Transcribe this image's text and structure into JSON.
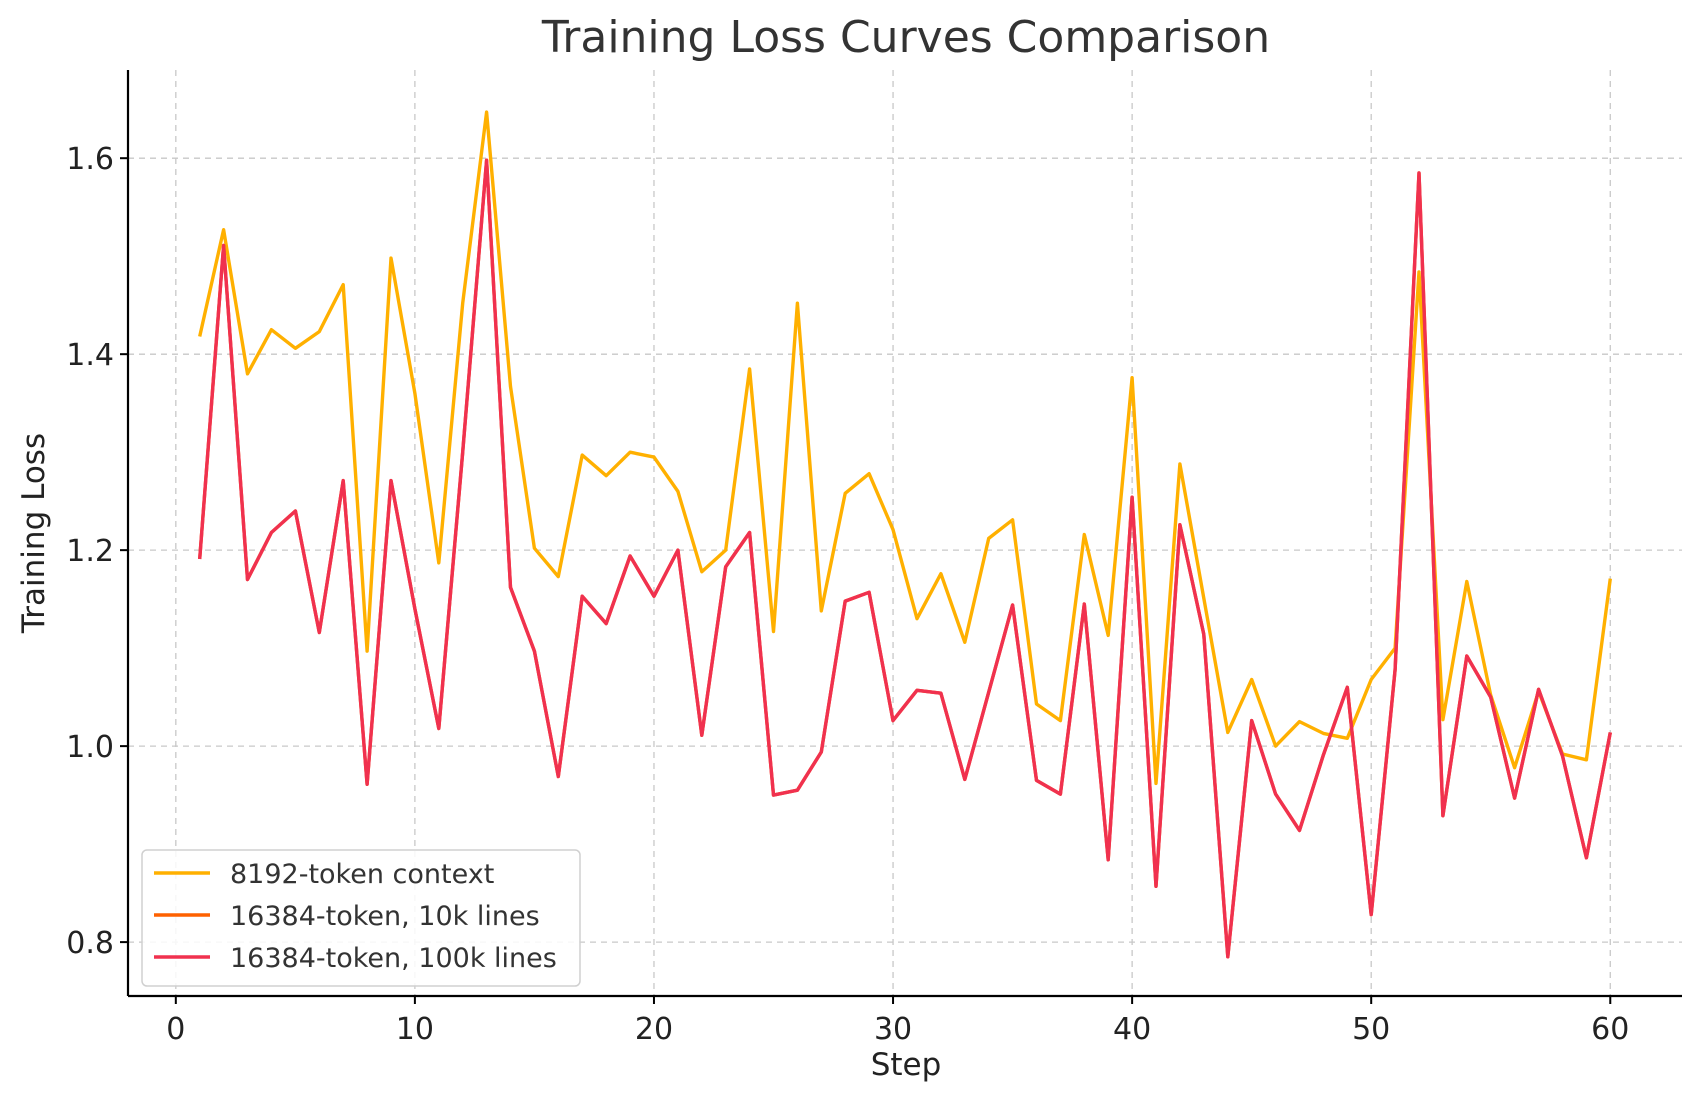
{
  "chart_data": {
    "type": "line",
    "title": "Training Loss Curves Comparison",
    "xlabel": "Step",
    "ylabel": "Training Loss",
    "xlim": [
      -2,
      63
    ],
    "ylim": [
      0.745,
      1.69
    ],
    "xticks": [
      0,
      10,
      20,
      30,
      40,
      50,
      60
    ],
    "yticks": [
      0.8,
      1.0,
      1.2,
      1.4,
      1.6
    ],
    "grid": true,
    "legend_position": "lower-left",
    "x": [
      1,
      2,
      3,
      4,
      5,
      6,
      7,
      8,
      9,
      10,
      11,
      12,
      13,
      14,
      15,
      16,
      17,
      18,
      19,
      20,
      21,
      22,
      23,
      24,
      25,
      26,
      27,
      28,
      29,
      30,
      31,
      32,
      33,
      34,
      35,
      36,
      37,
      38,
      39,
      40,
      41,
      42,
      43,
      44,
      45,
      46,
      47,
      48,
      49,
      50,
      51,
      52,
      53,
      54,
      55,
      56,
      57,
      58,
      59,
      60
    ],
    "series": [
      {
        "name": "8192-token context",
        "color": "#FFB000",
        "values": [
          1.418,
          1.527,
          1.38,
          1.425,
          1.406,
          1.423,
          1.471,
          1.097,
          1.498,
          1.36,
          1.187,
          1.452,
          1.647,
          1.367,
          1.202,
          1.173,
          1.297,
          1.276,
          1.3,
          1.295,
          1.26,
          1.178,
          1.2,
          1.385,
          1.117,
          1.452,
          1.138,
          1.258,
          1.278,
          1.221,
          1.13,
          1.176,
          1.106,
          1.212,
          1.231,
          1.043,
          1.026,
          1.216,
          1.113,
          1.376,
          0.962,
          1.288,
          1.151,
          1.014,
          1.068,
          1.0,
          1.025,
          1.013,
          1.008,
          1.068,
          1.1,
          1.484,
          1.027,
          1.168,
          1.052,
          0.978,
          1.056,
          0.992,
          0.986,
          1.171
        ]
      },
      {
        "name": "16384-token, 10k lines",
        "color": "#FE6100",
        "values": [
          1.191,
          1.511,
          1.17,
          1.218,
          1.24,
          1.116,
          1.271,
          0.961,
          1.271,
          1.14,
          1.018,
          1.3,
          1.598,
          1.162,
          1.097,
          0.969,
          1.153,
          1.125,
          1.194,
          1.153,
          1.2,
          1.011,
          1.183,
          1.218,
          0.95,
          0.955,
          0.994,
          1.148,
          1.157,
          1.026,
          1.057,
          1.054,
          0.966,
          1.055,
          1.144,
          0.965,
          0.951,
          1.145,
          0.884,
          1.254,
          0.857,
          1.226,
          1.114,
          0.785,
          1.026,
          0.951,
          0.914,
          0.991,
          1.06,
          0.828,
          1.078,
          1.585,
          0.929,
          1.092,
          1.05,
          0.947,
          1.058,
          0.99,
          0.886,
          1.014
        ]
      },
      {
        "name": "16384-token, 100k lines",
        "color": "#F0314F",
        "values": [
          1.191,
          1.511,
          1.17,
          1.218,
          1.24,
          1.116,
          1.271,
          0.961,
          1.271,
          1.14,
          1.018,
          1.3,
          1.598,
          1.162,
          1.097,
          0.969,
          1.153,
          1.125,
          1.194,
          1.153,
          1.2,
          1.011,
          1.183,
          1.218,
          0.95,
          0.955,
          0.994,
          1.148,
          1.157,
          1.026,
          1.057,
          1.054,
          0.966,
          1.055,
          1.144,
          0.965,
          0.951,
          1.145,
          0.884,
          1.254,
          0.857,
          1.226,
          1.114,
          0.785,
          1.026,
          0.951,
          0.914,
          0.991,
          1.06,
          0.828,
          1.078,
          1.585,
          0.929,
          1.092,
          1.05,
          0.947,
          1.058,
          0.99,
          0.886,
          1.014
        ]
      }
    ]
  }
}
